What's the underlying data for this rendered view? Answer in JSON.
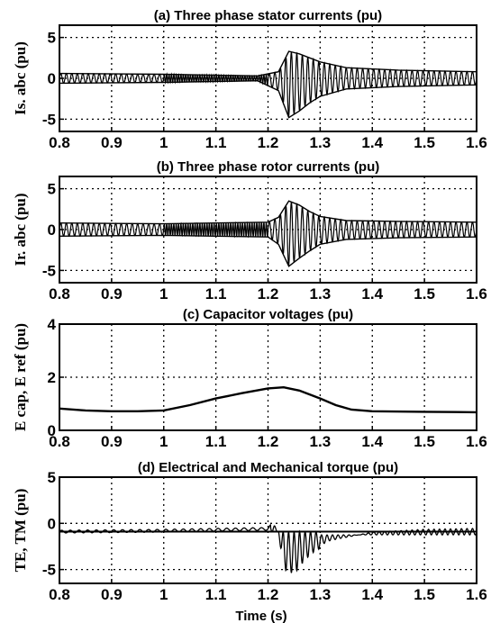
{
  "xlabel": "Time (s)",
  "chart_data": [
    {
      "type": "line",
      "title": "(a) Three phase stator currents (pu)",
      "ylabel": "Is. abc (pu)",
      "xlim": [
        0.8,
        1.6
      ],
      "ylim": [
        -6.5,
        6.5
      ],
      "xticks": [
        "0.8",
        "0.9",
        "1",
        "1.1",
        "1.2",
        "1.3",
        "1.4",
        "1.5",
        "1.6"
      ],
      "yticks": [
        {
          "v": 5,
          "label": "5"
        },
        {
          "v": 0,
          "label": "0"
        },
        {
          "v": -5,
          "label": "-5"
        }
      ],
      "grid": true,
      "series": [
        {
          "points": [
            [
              0.8,
              0.6
            ],
            [
              1.0,
              0.5
            ],
            [
              1.18,
              0.3
            ],
            [
              1.22,
              0.8
            ],
            [
              1.24,
              3.3
            ],
            [
              1.26,
              3.0
            ],
            [
              1.28,
              2.5
            ],
            [
              1.3,
              2.0
            ],
            [
              1.35,
              1.3
            ],
            [
              1.45,
              1.0
            ],
            [
              1.6,
              0.8
            ]
          ]
        },
        {
          "points": [
            [
              0.8,
              -0.6
            ],
            [
              1.0,
              -0.5
            ],
            [
              1.18,
              -0.3
            ],
            [
              1.22,
              -1.5
            ],
            [
              1.24,
              -4.8
            ],
            [
              1.26,
              -4.0
            ],
            [
              1.28,
              -3.0
            ],
            [
              1.3,
              -2.2
            ],
            [
              1.35,
              -1.3
            ],
            [
              1.45,
              -1.0
            ],
            [
              1.6,
              -0.8
            ]
          ]
        }
      ]
    },
    {
      "type": "line",
      "title": "(b) Three phase rotor currents (pu)",
      "ylabel": "Ir. abc (pu)",
      "xlim": [
        0.8,
        1.6
      ],
      "ylim": [
        -6.5,
        6.5
      ],
      "xticks": [
        "0.8",
        "0.9",
        "1",
        "1.1",
        "1.2",
        "1.3",
        "1.4",
        "1.5",
        "1.6"
      ],
      "yticks": [
        {
          "v": 5,
          "label": "5"
        },
        {
          "v": 0,
          "label": "0"
        },
        {
          "v": -5,
          "label": "-5"
        }
      ],
      "grid": true,
      "series": [
        {
          "points": [
            [
              0.8,
              0.8
            ],
            [
              1.0,
              0.7
            ],
            [
              1.2,
              0.9
            ],
            [
              1.22,
              1.5
            ],
            [
              1.24,
              3.5
            ],
            [
              1.26,
              3.0
            ],
            [
              1.28,
              2.2
            ],
            [
              1.3,
              1.6
            ],
            [
              1.35,
              1.1
            ],
            [
              1.45,
              1.0
            ],
            [
              1.6,
              0.9
            ]
          ]
        },
        {
          "points": [
            [
              0.8,
              -0.8
            ],
            [
              1.0,
              -0.7
            ],
            [
              1.2,
              -0.9
            ],
            [
              1.22,
              -1.8
            ],
            [
              1.24,
              -4.5
            ],
            [
              1.26,
              -3.5
            ],
            [
              1.28,
              -2.6
            ],
            [
              1.3,
              -1.8
            ],
            [
              1.35,
              -1.2
            ],
            [
              1.45,
              -1.0
            ],
            [
              1.6,
              -0.9
            ]
          ]
        }
      ]
    },
    {
      "type": "line",
      "title": "(c) Capacitor voltages (pu)",
      "ylabel": "E cap, E ref (pu)",
      "xlim": [
        0.8,
        1.6
      ],
      "ylim": [
        0,
        4
      ],
      "xticks": [
        "0.8",
        "0.9",
        "1",
        "1.1",
        "1.2",
        "1.3",
        "1.4",
        "1.5",
        "1.6"
      ],
      "yticks": [
        {
          "v": 4,
          "label": "4"
        },
        {
          "v": 2,
          "label": "2"
        },
        {
          "v": 0,
          "label": "0"
        }
      ],
      "grid": true,
      "series": [
        {
          "points": [
            [
              0.8,
              0.82
            ],
            [
              0.85,
              0.75
            ],
            [
              0.9,
              0.72
            ],
            [
              0.95,
              0.72
            ],
            [
              1.0,
              0.75
            ],
            [
              1.05,
              0.95
            ],
            [
              1.1,
              1.2
            ],
            [
              1.15,
              1.4
            ],
            [
              1.2,
              1.58
            ],
            [
              1.23,
              1.62
            ],
            [
              1.26,
              1.5
            ],
            [
              1.3,
              1.2
            ],
            [
              1.33,
              0.95
            ],
            [
              1.36,
              0.78
            ],
            [
              1.4,
              0.72
            ],
            [
              1.5,
              0.7
            ],
            [
              1.6,
              0.68
            ]
          ]
        }
      ]
    },
    {
      "type": "line",
      "title": "(d) Electrical and Mechanical torque (pu)",
      "ylabel": "TE, TM (pu)",
      "xlim": [
        0.8,
        1.6
      ],
      "ylim": [
        -6.5,
        5
      ],
      "xticks": [
        "0.8",
        "0.9",
        "1",
        "1.1",
        "1.2",
        "1.3",
        "1.4",
        "1.5",
        "1.6"
      ],
      "yticks": [
        {
          "v": 5,
          "label": "5"
        },
        {
          "v": 0,
          "label": "0"
        },
        {
          "v": -5,
          "label": "-5"
        }
      ],
      "grid": true,
      "series": [
        {
          "points": [
            [
              0.8,
              -0.9
            ],
            [
              1.0,
              -0.8
            ],
            [
              1.2,
              -0.6
            ],
            [
              1.21,
              0.0
            ],
            [
              1.22,
              -1.0
            ],
            [
              1.23,
              -5.0
            ],
            [
              1.25,
              -5.5
            ],
            [
              1.27,
              -4.0
            ],
            [
              1.29,
              -3.0
            ],
            [
              1.32,
              -2.2
            ],
            [
              1.4,
              -1.3
            ],
            [
              1.5,
              -1.0
            ],
            [
              1.6,
              -0.9
            ]
          ]
        },
        {
          "points": [
            [
              0.8,
              -0.9
            ],
            [
              1.6,
              -0.9
            ]
          ]
        }
      ]
    }
  ]
}
